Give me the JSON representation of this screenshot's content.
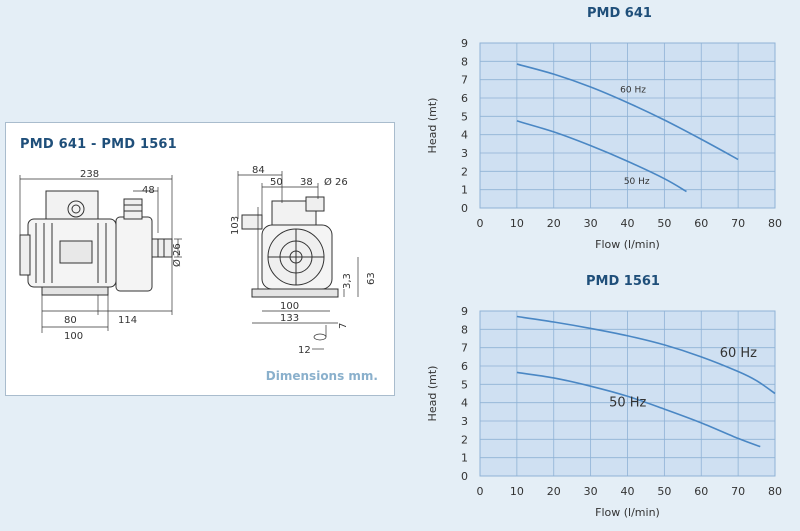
{
  "dimensions_card": {
    "title": "PMD 641 - PMD 1561",
    "footnote": "Dimensions mm.",
    "labels": {
      "overall_length": "238",
      "outlet_offset": "48",
      "outlet_diameter": "Ø 26",
      "foot_span": "80",
      "pump_length": "114",
      "base_length": "100",
      "front_top": "84",
      "front_a": "50",
      "front_b": "38",
      "front_inlet_diameter": "Ø 26",
      "front_height": "103",
      "shaft_height": "63",
      "foot_height": "3,3",
      "front_base_inner": "100",
      "front_base_outer": "133",
      "slot_height": "7",
      "slot_width": "12"
    }
  },
  "chart_data": [
    {
      "type": "line",
      "title": "PMD 641",
      "xlabel": "Flow (l/min)",
      "ylabel": "Head (mt)",
      "xlim": [
        0,
        80
      ],
      "ylim": [
        0,
        9
      ],
      "xticks": [
        "0",
        "10",
        "20",
        "30",
        "40",
        "50",
        "60",
        "70",
        "80"
      ],
      "yticks": [
        "0",
        "1",
        "2",
        "3",
        "4",
        "5",
        "6",
        "7",
        "8",
        "9"
      ],
      "grid": true,
      "series": [
        {
          "name": "60 Hz",
          "label_at": [
            38,
            6.3
          ],
          "label_size": 9,
          "x": [
            10,
            20,
            30,
            40,
            50,
            60,
            70
          ],
          "y": [
            7.85,
            7.3,
            6.6,
            5.75,
            4.8,
            3.75,
            2.65
          ]
        },
        {
          "name": "50 Hz",
          "label_at": [
            39,
            1.3
          ],
          "label_size": 9,
          "x": [
            10,
            20,
            30,
            40,
            50,
            56
          ],
          "y": [
            4.75,
            4.15,
            3.4,
            2.55,
            1.6,
            0.9
          ]
        }
      ]
    },
    {
      "type": "line",
      "title": "PMD 1561",
      "xlabel": "Flow (l/min)",
      "ylabel": "Head (mt)",
      "xlim": [
        0,
        80
      ],
      "ylim": [
        0,
        9
      ],
      "xticks": [
        "0",
        "10",
        "20",
        "30",
        "40",
        "50",
        "60",
        "70",
        "80"
      ],
      "yticks": [
        "0",
        "1",
        "2",
        "3",
        "4",
        "5",
        "6",
        "7",
        "8",
        "9"
      ],
      "grid": true,
      "series": [
        {
          "name": "60 Hz",
          "label_at": [
            65,
            6.5
          ],
          "label_size": 13,
          "x": [
            10,
            20,
            30,
            40,
            50,
            60,
            70,
            75,
            80
          ],
          "y": [
            8.7,
            8.4,
            8.05,
            7.65,
            7.15,
            6.5,
            5.7,
            5.2,
            4.5
          ]
        },
        {
          "name": "50 Hz",
          "label_at": [
            35,
            3.8
          ],
          "label_size": 13,
          "x": [
            10,
            20,
            30,
            40,
            50,
            60,
            70,
            76
          ],
          "y": [
            5.65,
            5.35,
            4.9,
            4.35,
            3.65,
            2.9,
            2.05,
            1.6
          ]
        }
      ]
    }
  ],
  "style": {
    "plot_bg": "#cfe0f2",
    "grid_color": "#8fb2d5",
    "curve_color": "#4a87c4",
    "text_color": "#333333",
    "title_color": "#1f4f7a"
  }
}
